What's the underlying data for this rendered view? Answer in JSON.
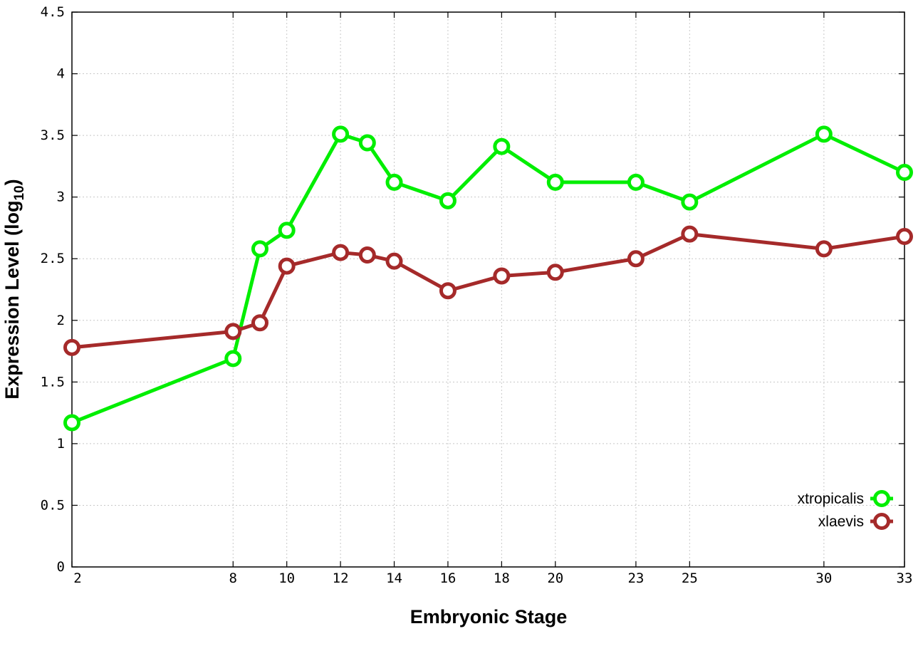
{
  "chart_data": {
    "type": "line",
    "xlabel": "Embryonic Stage",
    "ylabel": {
      "main": "Expression Level (log",
      "sub": "10",
      "end": ")"
    },
    "x_ticks": [
      2,
      8,
      10,
      12,
      14,
      16,
      18,
      20,
      23,
      25,
      30,
      33
    ],
    "x_tick_labels": [
      "2",
      "8",
      "10",
      "12",
      "14",
      "16",
      "18",
      "20",
      "23",
      "25",
      "30",
      "33"
    ],
    "y_ticks": [
      0,
      0.5,
      1,
      1.5,
      2,
      2.5,
      3,
      3.5,
      4,
      4.5
    ],
    "y_tick_labels": [
      "0",
      "0.5",
      "1",
      "1.5",
      "2",
      "2.5",
      "3",
      "3.5",
      "4",
      "4.5"
    ],
    "xlim": [
      2,
      33
    ],
    "ylim": [
      0,
      4.5
    ],
    "grid": true,
    "legend_position": "bottom-right",
    "series": [
      {
        "name": "xtropicalis",
        "color": "#00ee00",
        "x": [
          2,
          8,
          9,
          10,
          12,
          13,
          14,
          16,
          18,
          20,
          23,
          25,
          30,
          33
        ],
        "values": [
          1.17,
          1.69,
          2.58,
          2.73,
          3.51,
          3.44,
          3.12,
          2.97,
          3.41,
          3.12,
          3.12,
          2.96,
          3.51,
          3.2
        ]
      },
      {
        "name": "xlaevis",
        "color": "#a52a2a",
        "x": [
          2,
          8,
          9,
          10,
          12,
          13,
          14,
          16,
          18,
          20,
          23,
          25,
          30,
          33
        ],
        "values": [
          1.78,
          1.91,
          1.98,
          2.44,
          2.55,
          2.53,
          2.48,
          2.24,
          2.36,
          2.39,
          2.5,
          2.7,
          2.58,
          2.68
        ]
      }
    ]
  }
}
